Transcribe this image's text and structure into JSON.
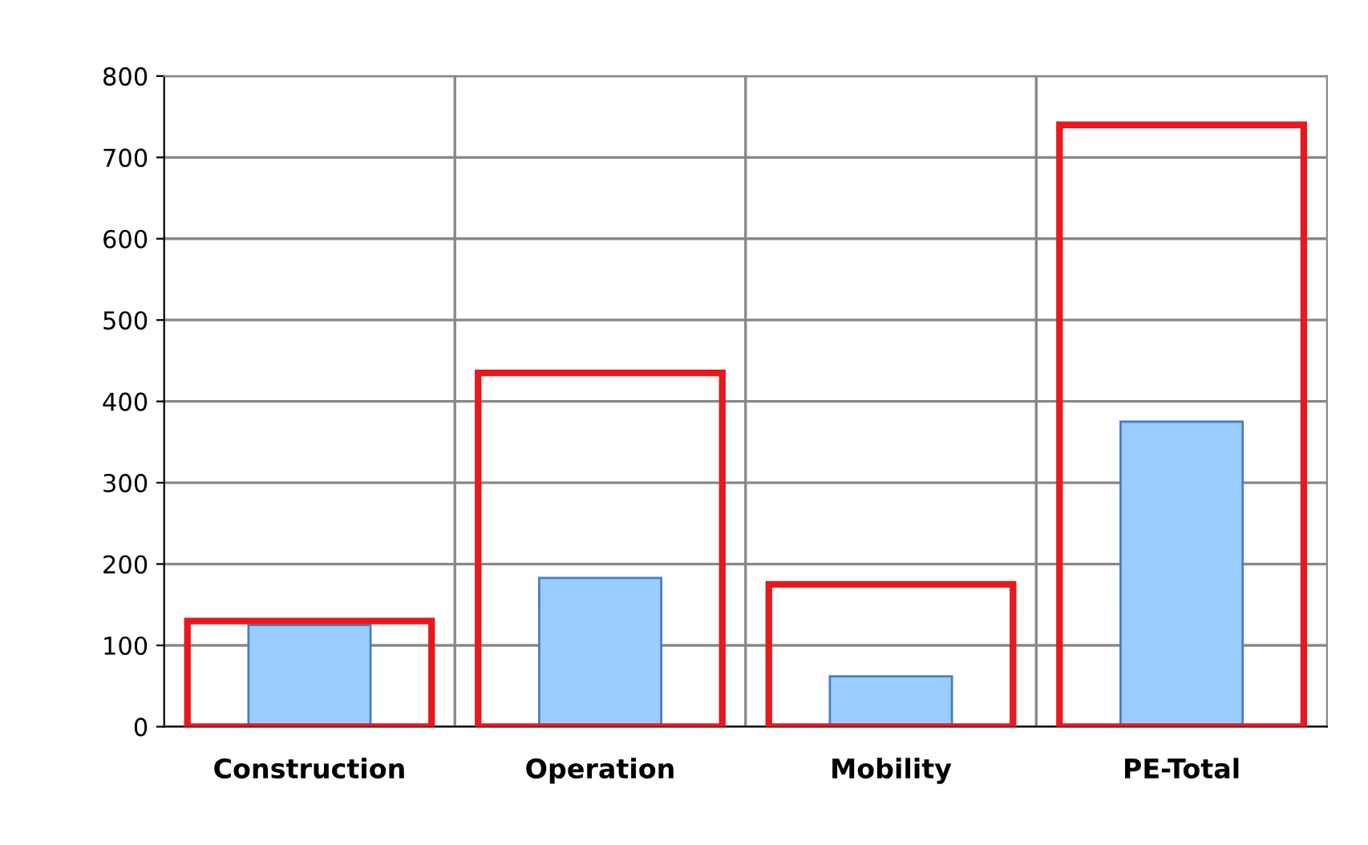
{
  "chart_data": {
    "type": "bar",
    "categories": [
      "Construction",
      "Operation",
      "Mobility",
      "PE-Total"
    ],
    "series": [
      {
        "color": "#e8191c",
        "values": [
          130,
          435,
          175,
          740
        ]
      },
      {
        "color": "#99ccff",
        "values": [
          125,
          183,
          62,
          375
        ]
      }
    ],
    "ylim": [
      0,
      800
    ],
    "yticks": [
      0,
      100,
      200,
      300,
      400,
      500,
      600,
      700,
      800
    ],
    "grid": true
  }
}
